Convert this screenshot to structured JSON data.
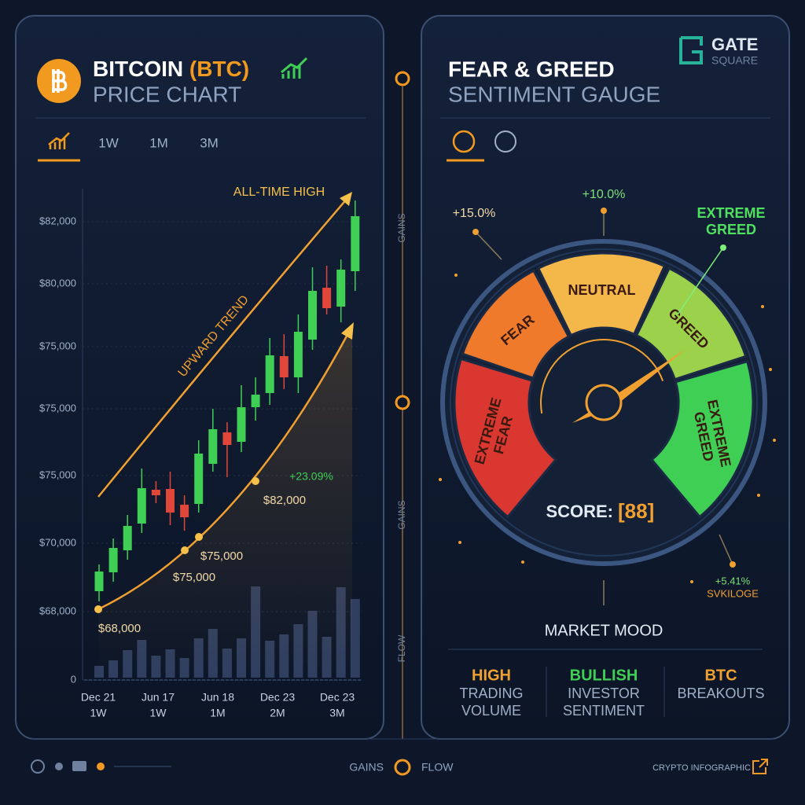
{
  "left_panel": {
    "title_main": "BITCOIN",
    "title_ticker": "(BTC)",
    "subtitle": "PRICE CHART",
    "tabs": [
      "1W",
      "1M",
      "3M"
    ],
    "y_labels": [
      "$82,000",
      "$80,000",
      "$75,000",
      "$75,000",
      "$75,000",
      "$70,000",
      "$68,000",
      "0"
    ],
    "x_labels": [
      {
        "date": "Dec 21",
        "range": "1W"
      },
      {
        "date": "Jun 17",
        "range": "1W"
      },
      {
        "date": "Jun 18",
        "range": "1M"
      },
      {
        "date": "Dec 23",
        "range": "2M"
      },
      {
        "date": "Dec 23",
        "range": "3M"
      }
    ],
    "annotations": {
      "ath": "ALL-TIME HIGH",
      "trend": "UPWARD TREND",
      "change": "+23.09%"
    },
    "points": [
      "$68,000",
      "$75,000",
      "$75,000",
      "$82,000"
    ]
  },
  "divider": {
    "labels": [
      "GAINS",
      "GAINS",
      "FLOW"
    ]
  },
  "right_panel": {
    "title": "FEAR & GREED",
    "subtitle": "SENTIMENT GAUGE",
    "brand": [
      "GATE",
      "SQUARE"
    ],
    "segments": [
      [
        "EXTREME",
        "FEAR"
      ],
      [
        "FEAR"
      ],
      [
        "NEUTRAL"
      ],
      [
        "GREED"
      ],
      [
        "EXTREME",
        "GREED"
      ]
    ],
    "callouts": {
      "left": "+15.0%",
      "top": "+10.0%",
      "extreme": [
        "EXTREME",
        "GREED"
      ],
      "change": "+5.41%",
      "tag": "SVKILOGE"
    },
    "score_label": "SCORE:",
    "score": "[88]",
    "mood_title": "MARKET MOOD",
    "mood": [
      {
        "head": "HIGH",
        "lines": [
          "TRADING",
          "VOLUME"
        ]
      },
      {
        "head": "BULLISH",
        "lines": [
          "INVESTOR",
          "SENTIMENT"
        ]
      },
      {
        "head": "BTC",
        "lines": [
          "BREAKOUTS"
        ]
      }
    ]
  },
  "footer": {
    "nav": [
      "GAINS",
      "FLOW"
    ],
    "credit": "CRYPTO INFOGRAPHIC"
  }
}
